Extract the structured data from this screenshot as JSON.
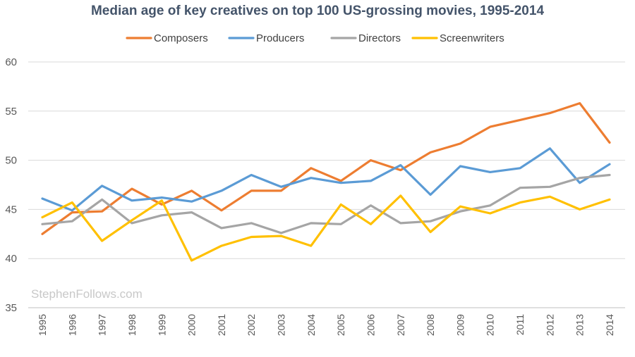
{
  "chart_data": {
    "type": "line",
    "title": "Median age of key creatives on top 100 US-grossing movies, 1995-2014",
    "xlabel": "",
    "ylabel": "",
    "categories": [
      "1995",
      "1996",
      "1997",
      "1998",
      "1999",
      "2000",
      "2001",
      "2002",
      "2003",
      "2004",
      "2005",
      "2006",
      "2007",
      "2008",
      "2009",
      "2010",
      "2011",
      "2012",
      "2013",
      "2014"
    ],
    "ylim": [
      35,
      60
    ],
    "yticks": [
      35,
      40,
      45,
      50,
      55,
      60
    ],
    "grid": true,
    "legend_position": "top",
    "series": [
      {
        "name": "Composers",
        "color": "#ed7d31",
        "values": [
          42.5,
          44.7,
          44.8,
          47.1,
          45.5,
          46.9,
          44.9,
          46.9,
          46.9,
          49.2,
          47.9,
          50.0,
          49.0,
          50.8,
          51.7,
          53.4,
          54.1,
          54.8,
          55.8,
          51.8
        ]
      },
      {
        "name": "Producers",
        "color": "#5b9bd5",
        "values": [
          46.1,
          44.9,
          47.4,
          45.9,
          46.2,
          45.8,
          46.9,
          48.5,
          47.3,
          48.2,
          47.7,
          47.9,
          49.5,
          46.5,
          49.4,
          48.8,
          49.2,
          51.2,
          47.7,
          49.6
        ]
      },
      {
        "name": "Directors",
        "color": "#a5a5a5",
        "values": [
          43.5,
          43.8,
          46.0,
          43.6,
          44.4,
          44.7,
          43.1,
          43.6,
          42.6,
          43.6,
          43.5,
          45.4,
          43.6,
          43.8,
          44.8,
          45.4,
          47.2,
          47.3,
          48.2,
          48.5
        ]
      },
      {
        "name": "Screenwriters",
        "color": "#ffc000",
        "values": [
          44.2,
          45.7,
          41.8,
          43.9,
          45.9,
          39.8,
          41.3,
          42.2,
          42.3,
          41.3,
          45.5,
          43.5,
          46.4,
          42.7,
          45.3,
          44.6,
          45.7,
          46.3,
          45.0,
          46.0
        ]
      }
    ],
    "watermark": "StephenFollows.com"
  }
}
